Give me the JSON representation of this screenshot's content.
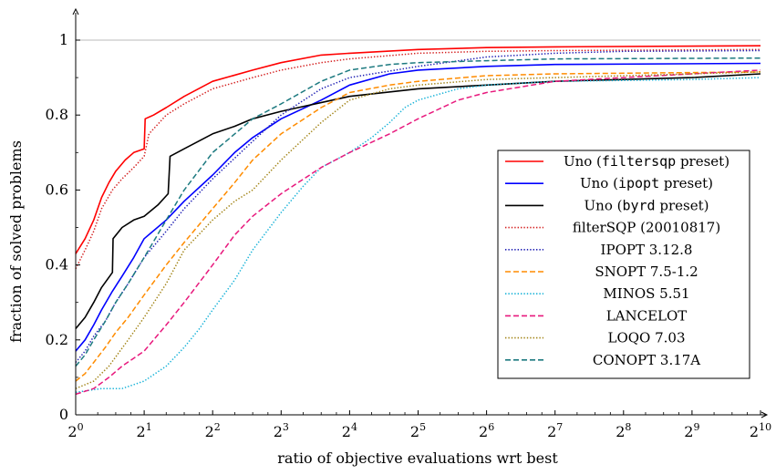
{
  "chart_data": {
    "type": "line",
    "title": "",
    "xlabel": "ratio of objective evaluations wrt best",
    "ylabel": "fraction of solved problems",
    "x_scale": "log2",
    "xlim": [
      1,
      1024
    ],
    "ylim": [
      0,
      1.05
    ],
    "x_ticks": [
      {
        "value": 1,
        "base": "2",
        "exp": "0"
      },
      {
        "value": 2,
        "base": "2",
        "exp": "1"
      },
      {
        "value": 4,
        "base": "2",
        "exp": "2"
      },
      {
        "value": 8,
        "base": "2",
        "exp": "3"
      },
      {
        "value": 16,
        "base": "2",
        "exp": "4"
      },
      {
        "value": 32,
        "base": "2",
        "exp": "5"
      },
      {
        "value": 64,
        "base": "2",
        "exp": "6"
      },
      {
        "value": 128,
        "base": "2",
        "exp": "7"
      },
      {
        "value": 256,
        "base": "2",
        "exp": "8"
      },
      {
        "value": 512,
        "base": "2",
        "exp": "9"
      },
      {
        "value": 1024,
        "base": "2",
        "exp": "10"
      }
    ],
    "y_ticks": [
      {
        "value": 0,
        "label": "0"
      },
      {
        "value": 0.2,
        "label": "0.2"
      },
      {
        "value": 0.4,
        "label": "0.4"
      },
      {
        "value": 0.6,
        "label": "0.6"
      },
      {
        "value": 0.8,
        "label": "0.8"
      },
      {
        "value": 1,
        "label": "1"
      }
    ],
    "reference_line": {
      "y": 1,
      "color": "#bbbbbb"
    },
    "grid": false,
    "legend_position": "right",
    "series": [
      {
        "name": "Uno (filtersqp preset)",
        "label_parts": [
          "Uno (",
          "filtersqp",
          " preset)"
        ],
        "color": "#ff0000",
        "style": "solid",
        "points": [
          [
            1,
            0.43
          ],
          [
            1.1,
            0.47
          ],
          [
            1.2,
            0.52
          ],
          [
            1.3,
            0.58
          ],
          [
            1.4,
            0.62
          ],
          [
            1.5,
            0.65
          ],
          [
            1.65,
            0.68
          ],
          [
            1.8,
            0.7
          ],
          [
            2,
            0.71
          ],
          [
            2.02,
            0.79
          ],
          [
            2.2,
            0.8
          ],
          [
            2.5,
            0.82
          ],
          [
            3,
            0.85
          ],
          [
            4,
            0.89
          ],
          [
            6,
            0.92
          ],
          [
            8,
            0.94
          ],
          [
            12,
            0.96
          ],
          [
            16,
            0.965
          ],
          [
            32,
            0.975
          ],
          [
            64,
            0.98
          ],
          [
            128,
            0.982
          ],
          [
            1024,
            0.985
          ]
        ]
      },
      {
        "name": "Uno (ipopt preset)",
        "label_parts": [
          "Uno (",
          "ipopt",
          " preset)"
        ],
        "color": "#0000ff",
        "style": "solid",
        "points": [
          [
            1,
            0.17
          ],
          [
            1.1,
            0.2
          ],
          [
            1.2,
            0.24
          ],
          [
            1.3,
            0.28
          ],
          [
            1.45,
            0.33
          ],
          [
            1.6,
            0.37
          ],
          [
            1.8,
            0.42
          ],
          [
            2,
            0.47
          ],
          [
            2.5,
            0.52
          ],
          [
            3,
            0.57
          ],
          [
            4,
            0.64
          ],
          [
            5,
            0.7
          ],
          [
            6,
            0.74
          ],
          [
            8,
            0.79
          ],
          [
            12,
            0.84
          ],
          [
            16,
            0.88
          ],
          [
            24,
            0.91
          ],
          [
            32,
            0.92
          ],
          [
            64,
            0.93
          ],
          [
            128,
            0.935
          ],
          [
            1024,
            0.938
          ]
        ]
      },
      {
        "name": "Uno (byrd preset)",
        "label_parts": [
          "Uno (",
          "byrd",
          " preset)"
        ],
        "color": "#000000",
        "style": "solid",
        "points": [
          [
            1,
            0.23
          ],
          [
            1.1,
            0.26
          ],
          [
            1.2,
            0.3
          ],
          [
            1.3,
            0.34
          ],
          [
            1.45,
            0.38
          ],
          [
            1.46,
            0.47
          ],
          [
            1.6,
            0.5
          ],
          [
            1.8,
            0.52
          ],
          [
            2,
            0.53
          ],
          [
            2.3,
            0.56
          ],
          [
            2.55,
            0.59
          ],
          [
            2.6,
            0.69
          ],
          [
            3,
            0.71
          ],
          [
            4,
            0.75
          ],
          [
            5,
            0.77
          ],
          [
            6,
            0.79
          ],
          [
            8,
            0.81
          ],
          [
            16,
            0.85
          ],
          [
            32,
            0.87
          ],
          [
            64,
            0.88
          ],
          [
            128,
            0.89
          ],
          [
            256,
            0.895
          ],
          [
            512,
            0.9
          ],
          [
            1024,
            0.91
          ]
        ]
      },
      {
        "name": "filterSQP (20010817)",
        "label_parts": [
          "filterSQP (20010817)"
        ],
        "color": "#d42020",
        "style": "dotted",
        "points": [
          [
            1,
            0.39
          ],
          [
            1.1,
            0.44
          ],
          [
            1.2,
            0.49
          ],
          [
            1.3,
            0.55
          ],
          [
            1.45,
            0.6
          ],
          [
            1.6,
            0.63
          ],
          [
            1.8,
            0.66
          ],
          [
            2,
            0.69
          ],
          [
            2.1,
            0.75
          ],
          [
            2.5,
            0.8
          ],
          [
            3,
            0.83
          ],
          [
            4,
            0.87
          ],
          [
            6,
            0.9
          ],
          [
            8,
            0.92
          ],
          [
            12,
            0.94
          ],
          [
            16,
            0.95
          ],
          [
            32,
            0.965
          ],
          [
            64,
            0.97
          ],
          [
            128,
            0.972
          ],
          [
            1024,
            0.975
          ]
        ]
      },
      {
        "name": "IPOPT 3.12.8",
        "label_parts": [
          "IPOPT 3.12.8"
        ],
        "color": "#1f1fb4",
        "style": "dotted",
        "points": [
          [
            1,
            0.14
          ],
          [
            1.1,
            0.17
          ],
          [
            1.2,
            0.21
          ],
          [
            1.35,
            0.25
          ],
          [
            1.5,
            0.3
          ],
          [
            1.7,
            0.35
          ],
          [
            2,
            0.42
          ],
          [
            2.5,
            0.49
          ],
          [
            3,
            0.55
          ],
          [
            4,
            0.63
          ],
          [
            6,
            0.73
          ],
          [
            8,
            0.8
          ],
          [
            12,
            0.87
          ],
          [
            16,
            0.9
          ],
          [
            32,
            0.93
          ],
          [
            64,
            0.955
          ],
          [
            128,
            0.965
          ],
          [
            256,
            0.97
          ],
          [
            1024,
            0.972
          ]
        ]
      },
      {
        "name": "SNOPT 7.5-1.2",
        "label_parts": [
          "SNOPT 7.5-1.2"
        ],
        "color": "#ff8c00",
        "style": "dashed",
        "points": [
          [
            1,
            0.09
          ],
          [
            1.1,
            0.11
          ],
          [
            1.2,
            0.14
          ],
          [
            1.35,
            0.18
          ],
          [
            1.5,
            0.22
          ],
          [
            1.7,
            0.26
          ],
          [
            2,
            0.32
          ],
          [
            2.5,
            0.4
          ],
          [
            3,
            0.46
          ],
          [
            4,
            0.55
          ],
          [
            5,
            0.62
          ],
          [
            6,
            0.68
          ],
          [
            8,
            0.75
          ],
          [
            12,
            0.82
          ],
          [
            16,
            0.86
          ],
          [
            24,
            0.88
          ],
          [
            32,
            0.89
          ],
          [
            64,
            0.905
          ],
          [
            128,
            0.91
          ],
          [
            1024,
            0.915
          ]
        ]
      },
      {
        "name": "MINOS 5.51",
        "label_parts": [
          "MINOS 5.51"
        ],
        "color": "#17b2d8",
        "style": "dotted",
        "points": [
          [
            1,
            0.06
          ],
          [
            1.3,
            0.07
          ],
          [
            1.6,
            0.07
          ],
          [
            2,
            0.09
          ],
          [
            2.5,
            0.13
          ],
          [
            3,
            0.18
          ],
          [
            3.5,
            0.23
          ],
          [
            4,
            0.28
          ],
          [
            5,
            0.36
          ],
          [
            6,
            0.44
          ],
          [
            8,
            0.54
          ],
          [
            10,
            0.61
          ],
          [
            12,
            0.66
          ],
          [
            16,
            0.7
          ],
          [
            20,
            0.74
          ],
          [
            24,
            0.78
          ],
          [
            28,
            0.82
          ],
          [
            32,
            0.84
          ],
          [
            48,
            0.87
          ],
          [
            64,
            0.88
          ],
          [
            128,
            0.89
          ],
          [
            512,
            0.895
          ],
          [
            1024,
            0.9
          ]
        ]
      },
      {
        "name": "LANCELOT",
        "label_parts": [
          "LANCELOT"
        ],
        "color": "#e8197d",
        "style": "dashed",
        "points": [
          [
            1,
            0.055
          ],
          [
            1.2,
            0.07
          ],
          [
            1.4,
            0.1
          ],
          [
            1.6,
            0.13
          ],
          [
            2,
            0.17
          ],
          [
            2.5,
            0.24
          ],
          [
            3,
            0.3
          ],
          [
            4,
            0.4
          ],
          [
            5,
            0.48
          ],
          [
            6,
            0.53
          ],
          [
            8,
            0.59
          ],
          [
            12,
            0.66
          ],
          [
            16,
            0.7
          ],
          [
            24,
            0.75
          ],
          [
            32,
            0.79
          ],
          [
            48,
            0.84
          ],
          [
            64,
            0.86
          ],
          [
            128,
            0.89
          ],
          [
            256,
            0.9
          ],
          [
            512,
            0.91
          ],
          [
            1024,
            0.92
          ]
        ]
      },
      {
        "name": "LOQO 7.03",
        "label_parts": [
          "LOQO 7.03"
        ],
        "color": "#a28417",
        "style": "dotted",
        "points": [
          [
            1,
            0.07
          ],
          [
            1.2,
            0.09
          ],
          [
            1.4,
            0.13
          ],
          [
            1.7,
            0.2
          ],
          [
            2,
            0.26
          ],
          [
            2.5,
            0.35
          ],
          [
            3,
            0.44
          ],
          [
            4,
            0.52
          ],
          [
            5,
            0.57
          ],
          [
            6,
            0.6
          ],
          [
            8,
            0.68
          ],
          [
            12,
            0.78
          ],
          [
            16,
            0.84
          ],
          [
            24,
            0.87
          ],
          [
            32,
            0.88
          ],
          [
            64,
            0.895
          ],
          [
            128,
            0.9
          ],
          [
            512,
            0.91
          ],
          [
            1024,
            0.915
          ]
        ]
      },
      {
        "name": "CONOPT 3.17A",
        "label_parts": [
          "CONOPT 3.17A"
        ],
        "color": "#1d7a80",
        "style": "dashed",
        "points": [
          [
            1,
            0.13
          ],
          [
            1.1,
            0.16
          ],
          [
            1.2,
            0.2
          ],
          [
            1.35,
            0.25
          ],
          [
            1.5,
            0.3
          ],
          [
            1.7,
            0.35
          ],
          [
            2,
            0.42
          ],
          [
            2.5,
            0.52
          ],
          [
            3,
            0.6
          ],
          [
            4,
            0.7
          ],
          [
            6,
            0.79
          ],
          [
            8,
            0.83
          ],
          [
            12,
            0.89
          ],
          [
            16,
            0.92
          ],
          [
            24,
            0.935
          ],
          [
            32,
            0.94
          ],
          [
            64,
            0.945
          ],
          [
            128,
            0.95
          ],
          [
            1024,
            0.952
          ]
        ]
      }
    ]
  }
}
